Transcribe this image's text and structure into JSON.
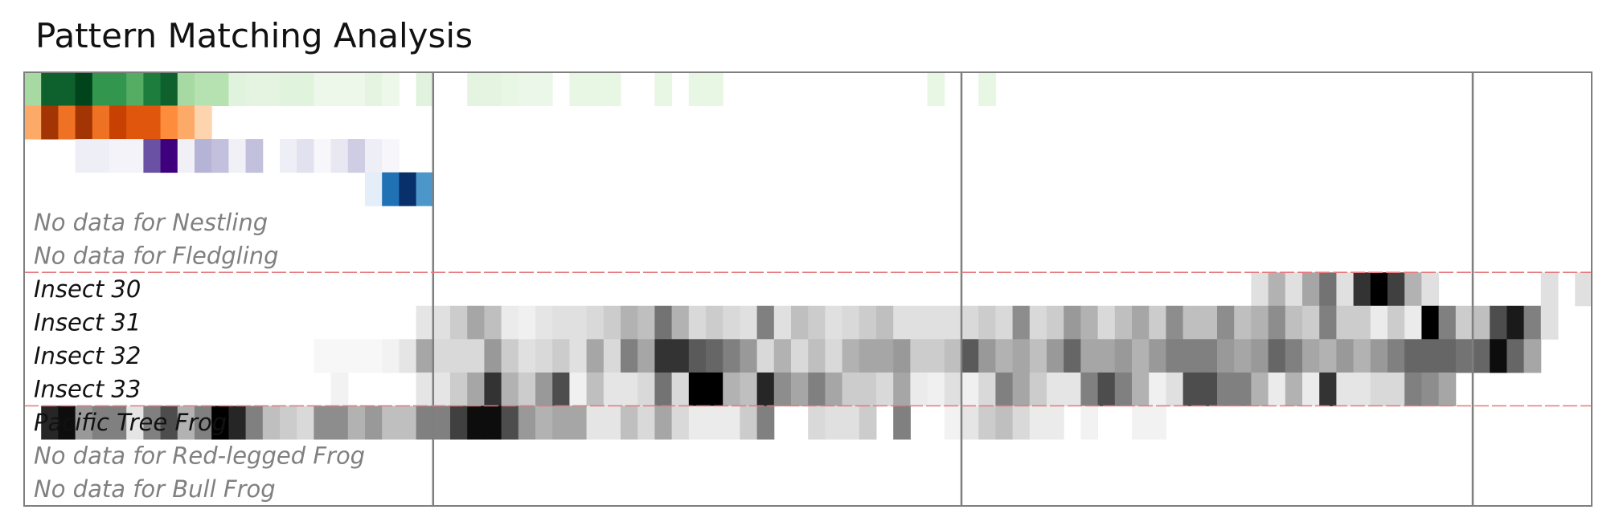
{
  "title": "Pattern Matching Analysis",
  "chart_data": {
    "type": "heatmap",
    "title": "Pattern Matching Analysis",
    "columns_count": 92,
    "section_boundaries": [
      24,
      55,
      85
    ],
    "group_separators": [
      6,
      10
    ],
    "rows": [
      {
        "label": "",
        "has_data": true,
        "colormap": "green",
        "values": [
          0.35,
          0.9,
          0.9,
          1.0,
          0.7,
          0.7,
          0.6,
          0.8,
          0.9,
          0.35,
          0.3,
          0.3,
          0.12,
          0.1,
          0.1,
          0.12,
          0.12,
          0.05,
          0.05,
          0.05,
          0.1,
          0.05,
          0,
          0.12,
          0,
          0,
          0.1,
          0.1,
          0.08,
          0.06,
          0.06,
          0,
          0.08,
          0.08,
          0.08,
          0,
          0,
          0.08,
          0,
          0.08,
          0.08,
          0,
          0,
          0,
          0,
          0,
          0,
          0,
          0,
          0,
          0,
          0,
          0,
          0.08,
          0,
          0,
          0.08,
          0,
          0,
          0,
          0,
          0,
          0,
          0,
          0,
          0,
          0,
          0,
          0,
          0,
          0,
          0,
          0,
          0,
          0,
          0,
          0,
          0,
          0,
          0,
          0,
          0,
          0,
          0,
          0,
          0,
          0,
          0,
          0,
          0,
          0,
          0
        ]
      },
      {
        "label": "",
        "has_data": true,
        "colormap": "orange",
        "values": [
          0.35,
          0.9,
          0.6,
          0.9,
          0.6,
          0.8,
          0.7,
          0.7,
          0.5,
          0.35,
          0.15,
          0,
          0,
          0,
          0,
          0,
          0,
          0,
          0,
          0,
          0,
          0,
          0,
          0,
          0,
          0,
          0,
          0,
          0,
          0,
          0,
          0,
          0,
          0,
          0,
          0,
          0,
          0,
          0,
          0,
          0,
          0,
          0,
          0,
          0,
          0,
          0,
          0,
          0,
          0,
          0,
          0,
          0,
          0,
          0,
          0,
          0,
          0,
          0,
          0,
          0,
          0,
          0,
          0,
          0,
          0,
          0,
          0,
          0,
          0,
          0,
          0,
          0,
          0,
          0,
          0,
          0,
          0,
          0,
          0,
          0,
          0,
          0,
          0,
          0,
          0,
          0,
          0,
          0,
          0,
          0,
          0
        ]
      },
      {
        "label": "",
        "has_data": true,
        "colormap": "purple",
        "values": [
          0,
          0,
          0,
          0.1,
          0.1,
          0.06,
          0.06,
          0.75,
          1.0,
          0.08,
          0.4,
          0.35,
          0.08,
          0.35,
          0,
          0.1,
          0.2,
          0.04,
          0.15,
          0.3,
          0.1,
          0.04,
          0,
          0,
          0,
          0,
          0,
          0,
          0,
          0,
          0,
          0,
          0,
          0,
          0,
          0,
          0,
          0,
          0,
          0,
          0,
          0,
          0,
          0,
          0,
          0,
          0,
          0,
          0,
          0,
          0,
          0,
          0,
          0,
          0,
          0,
          0,
          0,
          0,
          0,
          0,
          0,
          0,
          0,
          0,
          0,
          0,
          0,
          0,
          0,
          0,
          0,
          0,
          0,
          0,
          0,
          0,
          0,
          0,
          0,
          0,
          0,
          0,
          0,
          0,
          0,
          0,
          0,
          0,
          0,
          0,
          0
        ]
      },
      {
        "label": "",
        "has_data": true,
        "colormap": "blue",
        "values": [
          0,
          0,
          0,
          0,
          0,
          0,
          0,
          0,
          0,
          0,
          0,
          0,
          0,
          0,
          0,
          0,
          0,
          0,
          0,
          0,
          0.1,
          0.75,
          1.0,
          0.6,
          0,
          0,
          0,
          0,
          0,
          0,
          0,
          0,
          0,
          0,
          0,
          0,
          0,
          0,
          0,
          0,
          0,
          0,
          0,
          0,
          0,
          0,
          0,
          0,
          0,
          0,
          0,
          0,
          0,
          0,
          0,
          0,
          0,
          0,
          0,
          0,
          0,
          0,
          0,
          0,
          0,
          0,
          0,
          0,
          0,
          0,
          0,
          0,
          0,
          0,
          0,
          0,
          0,
          0,
          0,
          0,
          0,
          0,
          0,
          0,
          0,
          0,
          0,
          0,
          0,
          0,
          0,
          0
        ]
      },
      {
        "label": "No data for Nestling",
        "has_data": false
      },
      {
        "label": "No data for Fledgling",
        "has_data": false
      },
      {
        "label": "Insect 30",
        "has_data": true,
        "colormap": "gray",
        "values": [
          0,
          0,
          0,
          0,
          0,
          0,
          0,
          0,
          0,
          0,
          0,
          0,
          0,
          0,
          0,
          0,
          0,
          0,
          0,
          0,
          0,
          0,
          0,
          0,
          0,
          0,
          0,
          0,
          0,
          0,
          0,
          0,
          0,
          0,
          0,
          0,
          0,
          0,
          0,
          0,
          0,
          0,
          0,
          0,
          0,
          0,
          0,
          0,
          0,
          0,
          0,
          0,
          0,
          0,
          0,
          0,
          0,
          0,
          0,
          0,
          0,
          0,
          0,
          0,
          0,
          0,
          0,
          0,
          0,
          0,
          0,
          0,
          0.12,
          0.3,
          0.12,
          0.35,
          0.55,
          0.12,
          0.8,
          1.0,
          0.75,
          0.3,
          0.12,
          0,
          0,
          0,
          0,
          0,
          0,
          0.12,
          0,
          0.12
        ]
      },
      {
        "label": "Insect 31",
        "has_data": true,
        "colormap": "gray",
        "values": [
          0,
          0,
          0,
          0,
          0,
          0,
          0,
          0,
          0,
          0,
          0,
          0,
          0,
          0,
          0,
          0,
          0,
          0,
          0,
          0,
          0,
          0,
          0,
          0.1,
          0.12,
          0.2,
          0.35,
          0.25,
          0.08,
          0.06,
          0.1,
          0.12,
          0.12,
          0.15,
          0.2,
          0.3,
          0.25,
          0.55,
          0.3,
          0.15,
          0.2,
          0.15,
          0.12,
          0.5,
          0.12,
          0.25,
          0.2,
          0.12,
          0.15,
          0.2,
          0.25,
          0.12,
          0.12,
          0.12,
          0.12,
          0.15,
          0.2,
          0.15,
          0.45,
          0.15,
          0.2,
          0.4,
          0.3,
          0.15,
          0.25,
          0.35,
          0.2,
          0.45,
          0.25,
          0.25,
          0.45,
          0.25,
          0.3,
          0.45,
          0.25,
          0.2,
          0.5,
          0.2,
          0.2,
          0.08,
          0.2,
          0.08,
          1.0,
          0.5,
          0.2,
          0.25,
          0.7,
          0.9,
          0.5,
          0.12,
          0,
          0
        ]
      },
      {
        "label": "Insect 32",
        "has_data": true,
        "colormap": "gray",
        "values": [
          0,
          0,
          0,
          0,
          0,
          0,
          0,
          0,
          0,
          0,
          0,
          0,
          0,
          0,
          0,
          0,
          0,
          0.03,
          0.03,
          0.03,
          0.03,
          0.05,
          0.1,
          0.35,
          0.15,
          0.15,
          0.15,
          0.4,
          0.2,
          0.12,
          0.15,
          0.2,
          0.12,
          0.35,
          0.15,
          0.5,
          0.35,
          0.8,
          0.8,
          0.65,
          0.6,
          0.5,
          0.4,
          0.15,
          0.3,
          0.15,
          0.25,
          0.15,
          0.3,
          0.35,
          0.35,
          0.4,
          0.2,
          0.2,
          0.25,
          0.65,
          0.4,
          0.3,
          0.35,
          0.25,
          0.4,
          0.6,
          0.35,
          0.35,
          0.4,
          0.3,
          0.4,
          0.5,
          0.5,
          0.5,
          0.4,
          0.35,
          0.4,
          0.6,
          0.5,
          0.35,
          0.3,
          0.4,
          0.3,
          0.4,
          0.5,
          0.6,
          0.6,
          0.6,
          0.55,
          0.6,
          0.95,
          0.6,
          0.35,
          0,
          0,
          0
        ]
      },
      {
        "label": "Insect 33",
        "has_data": true,
        "colormap": "gray",
        "values": [
          0,
          0,
          0,
          0,
          0,
          0,
          0,
          0,
          0,
          0,
          0,
          0,
          0,
          0,
          0,
          0,
          0,
          0,
          0.05,
          0,
          0,
          0,
          0,
          0.1,
          0.1,
          0.2,
          0.35,
          0.8,
          0.3,
          0.2,
          0.4,
          0.7,
          0.06,
          0.25,
          0.1,
          0.1,
          0.15,
          0.55,
          0.15,
          1.0,
          1.0,
          0.3,
          0.25,
          0.85,
          0.45,
          0.35,
          0.5,
          0.35,
          0.2,
          0.2,
          0.15,
          0.35,
          0.08,
          0.06,
          0.12,
          0.06,
          0.15,
          0.5,
          0.35,
          0.2,
          0.1,
          0.1,
          0.5,
          0.7,
          0.5,
          0.3,
          0.06,
          0.12,
          0.7,
          0.7,
          0.5,
          0.5,
          0.3,
          0.08,
          0.3,
          0.08,
          0.8,
          0.1,
          0.1,
          0.15,
          0.15,
          0.5,
          0.45,
          0.35,
          0,
          0,
          0,
          0,
          0,
          0,
          0,
          0
        ]
      },
      {
        "label": "Pacific Tree Frog",
        "has_data": true,
        "colormap": "gray",
        "values": [
          0,
          0.85,
          0.95,
          0.4,
          0.5,
          0.5,
          0.1,
          0.5,
          0.7,
          0.3,
          0.5,
          1.0,
          0.85,
          0.5,
          0.25,
          0.2,
          0.15,
          0.45,
          0.45,
          0.3,
          0.4,
          0.25,
          0.25,
          0.5,
          0.5,
          0.75,
          0.95,
          0.95,
          0.7,
          0.4,
          0.3,
          0.35,
          0.35,
          0.1,
          0.1,
          0.25,
          0.15,
          0.35,
          0.15,
          0.08,
          0.08,
          0.08,
          0.2,
          0.5,
          0,
          0,
          0.15,
          0.12,
          0.12,
          0.2,
          0,
          0.5,
          0,
          0,
          0.05,
          0.1,
          0.2,
          0.25,
          0.15,
          0.08,
          0.08,
          0,
          0.05,
          0,
          0,
          0.05,
          0.05,
          0,
          0,
          0,
          0,
          0,
          0,
          0,
          0,
          0,
          0,
          0,
          0,
          0,
          0,
          0,
          0,
          0,
          0,
          0,
          0,
          0,
          0,
          0,
          0,
          0
        ]
      },
      {
        "label": "No data for Red-legged Frog",
        "has_data": false
      },
      {
        "label": "No data for Bull Frog",
        "has_data": false
      }
    ]
  }
}
